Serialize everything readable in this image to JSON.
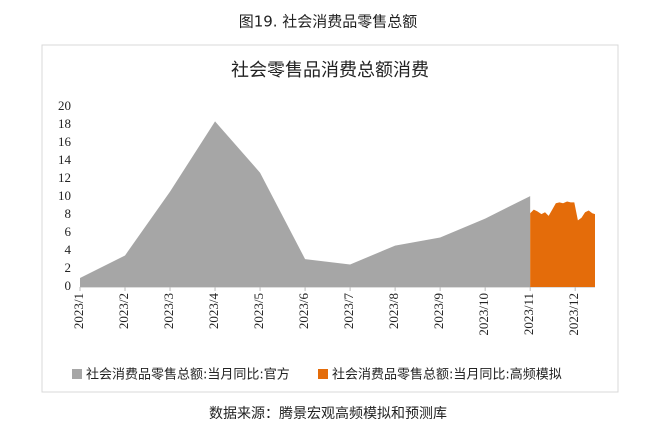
{
  "figure_title": "图19. 社会消费品零售总额",
  "source": "数据来源：腾景宏观高频模拟和预测库",
  "chart_data": {
    "type": "area",
    "title": "社会零售品消费总额消费",
    "xlim": [
      1,
      12.44
    ],
    "xticks": [
      {
        "value": 1,
        "label": "2023/1"
      },
      {
        "value": 2,
        "label": "2023/2"
      },
      {
        "value": 3,
        "label": "2023/3"
      },
      {
        "value": 4,
        "label": "2023/4"
      },
      {
        "value": 5,
        "label": "2023/5"
      },
      {
        "value": 6,
        "label": "2023/6"
      },
      {
        "value": 7,
        "label": "2023/7"
      },
      {
        "value": 8,
        "label": "2023/8"
      },
      {
        "value": 9,
        "label": "2023/9"
      },
      {
        "value": 10,
        "label": "2023/10"
      },
      {
        "value": 11,
        "label": "2023/11"
      },
      {
        "value": 12,
        "label": "2023/12"
      }
    ],
    "ylim": [
      0,
      20
    ],
    "yticks": [
      0,
      2,
      4,
      6,
      8,
      10,
      12,
      14,
      16,
      18,
      20
    ],
    "grid": false,
    "legend": "bottom",
    "series": [
      {
        "name": "社会消费品零售总额:当月同比:官方",
        "color": "#a6a6a6",
        "x": [
          1,
          2,
          3,
          4,
          5,
          6,
          7,
          8,
          9,
          10,
          11
        ],
        "values": [
          1,
          3.5,
          10.6,
          18.4,
          12.7,
          3.1,
          2.5,
          4.6,
          5.5,
          7.6,
          10.1
        ]
      },
      {
        "name": "社会消费品零售总额:当月同比:高频模拟",
        "color": "#e46c0a",
        "x": [
          11,
          11.08,
          11.16,
          11.25,
          11.33,
          11.41,
          11.49,
          11.57,
          11.65,
          11.73,
          11.82,
          11.9,
          11.98,
          12.06,
          12.14,
          12.22,
          12.3,
          12.38,
          12.44
        ],
        "values": [
          8.2,
          8.6,
          8.4,
          8.1,
          8.3,
          7.9,
          8.6,
          9.3,
          9.4,
          9.3,
          9.5,
          9.4,
          9.4,
          7.4,
          7.7,
          8.3,
          8.5,
          8.2,
          8.1
        ]
      }
    ]
  }
}
